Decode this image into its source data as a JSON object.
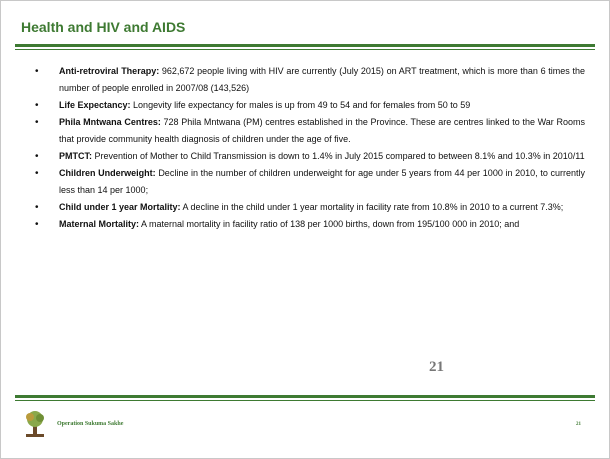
{
  "header": {
    "title": "Health and HIV and AIDS"
  },
  "bullets": [
    {
      "label": "Anti-retroviral Therapy:",
      "text": "962,672 people living with HIV are currently (July 2015) on ART treatment, which is more than 6 times the number of  people enrolled in 2007/08 (143,526)"
    },
    {
      "label": "Life Expectancy:",
      "text": "Longevity life expectancy for males is up from 49 to 54 and for females from 50 to 59"
    },
    {
      "label": "Phila Mntwana Centres:",
      "text": "728 Phila Mntwana (PM) centres established in the Province. These are centres linked to the War Rooms that provide community health diagnosis of children under the age of five."
    },
    {
      "label": "PMTCT:",
      "text": "Prevention of Mother to Child Transmission is down to 1.4% in July 2015 compared to between 8.1% and 10.3% in 2010/11"
    },
    {
      "label": "Children Underweight:",
      "text": "Decline in the number of children underweight for age under 5 years from 44 per 1000 in 2010, to currently less than 14 per 1000;"
    },
    {
      "label": "Child under 1 year Mortality:",
      "text": "A decline in the child under 1 year mortality in facility rate from 10.8% in 2010 to a current 7.3%;"
    },
    {
      "label": "Maternal Mortality:",
      "text": "A maternal mortality in facility ratio of 138 per 1000 births, down from 195/100 000 in 2010; and"
    }
  ],
  "page_number": "21",
  "footer": {
    "text": "Operation Sukuma Sakhe",
    "page_number": "21"
  }
}
